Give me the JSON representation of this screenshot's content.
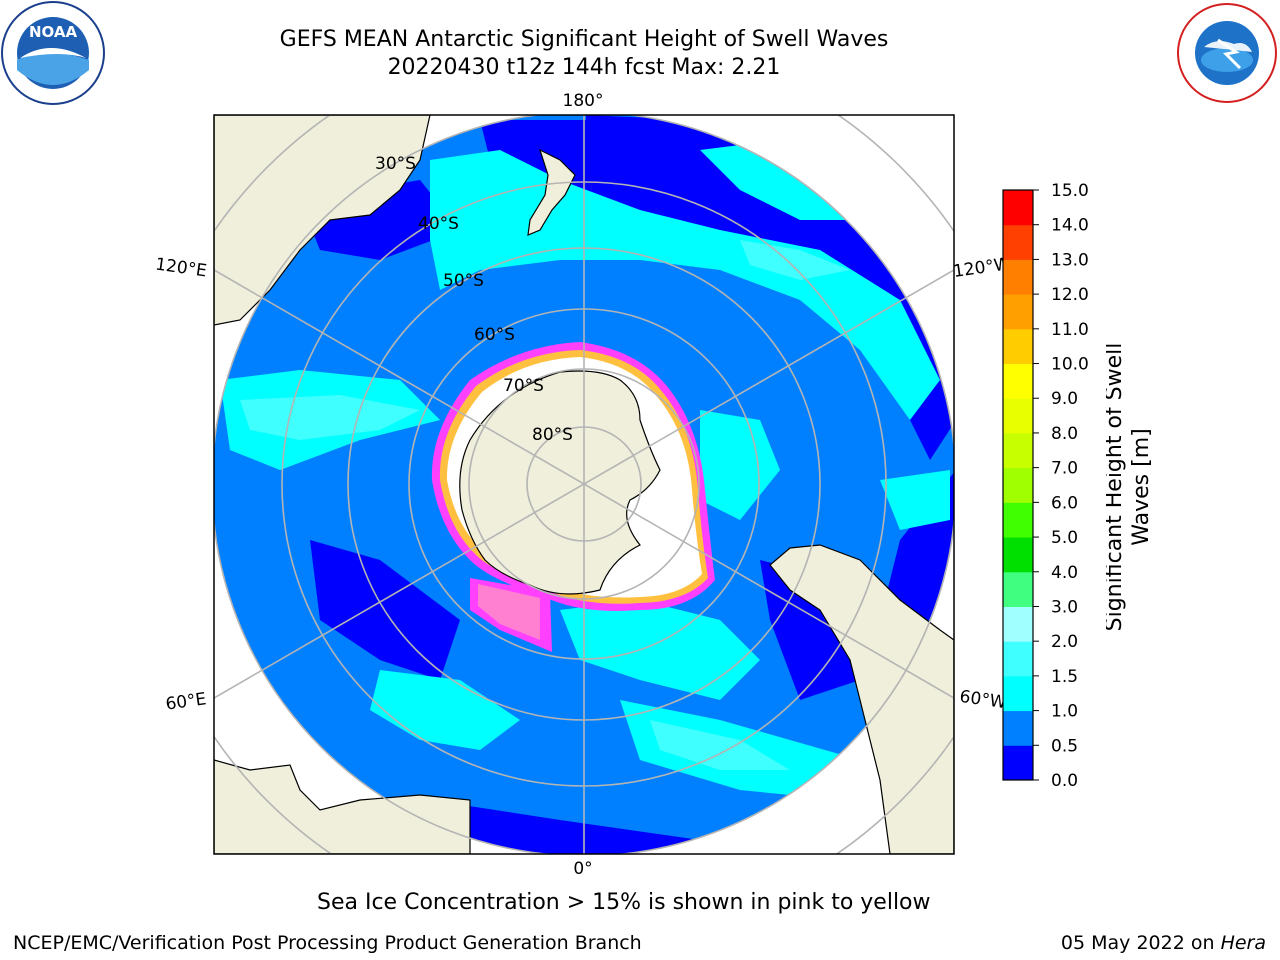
{
  "header": {
    "title_line1": "GEFS MEAN Antarctic Significant Height of Swell Waves",
    "title_line2": "20220430 t12z 144h fcst   Max: 2.21"
  },
  "logos": {
    "left": "NOAA",
    "left_ring_text": "NATIONAL OCEANIC AND ATMOSPHERIC ADMINISTRATION · U.S. DEPARTMENT OF COMMERCE",
    "right_ring_text": "NATIONAL WEATHER SERVICE"
  },
  "map": {
    "projection": "south-polar-stereographic",
    "longitude_labels": [
      "180°",
      "120°E",
      "120°W",
      "60°E",
      "60°W",
      "0°"
    ],
    "latitude_labels": [
      "30°S",
      "40°S",
      "50°S",
      "60°S",
      "70°S",
      "80°S"
    ],
    "legend_note": "Sea Ice Concentration > 15% is shown in pink to yellow"
  },
  "colorbar": {
    "label": "Significant Height of Swell Waves [m]",
    "label_line1": "Significant Height of Swell",
    "label_line2": "Waves [m]",
    "ticks": [
      "15.0",
      "14.0",
      "13.0",
      "12.0",
      "11.0",
      "10.0",
      "9.0",
      "8.0",
      "7.0",
      "6.0",
      "5.0",
      "4.0",
      "3.0",
      "2.0",
      "1.5",
      "1.0",
      "0.5",
      "0.0"
    ],
    "levels": [
      0,
      0.5,
      1.0,
      1.5,
      2.0,
      3.0,
      4.0,
      5.0,
      6.0,
      7.0,
      8.0,
      9.0,
      10.0,
      11.0,
      12.0,
      13.0,
      14.0,
      15.0
    ],
    "colors": [
      "#0000ff",
      "#0080ff",
      "#00ffff",
      "#40ffff",
      "#a0ffff",
      "#40ff80",
      "#00e000",
      "#40ff00",
      "#a0ff00",
      "#c8ff00",
      "#e8ff00",
      "#ffff00",
      "#ffcc00",
      "#ffa000",
      "#ff8000",
      "#ff4000",
      "#ff0000"
    ]
  },
  "colors": {
    "land": "#efefdc",
    "ice": "#ffffff",
    "graticule": "#b4b4b4"
  },
  "footer": {
    "left": "NCEP/EMC/Verification Post Processing Product Generation Branch",
    "right_date": "05 May 2022 on ",
    "right_machine": "Hera"
  }
}
